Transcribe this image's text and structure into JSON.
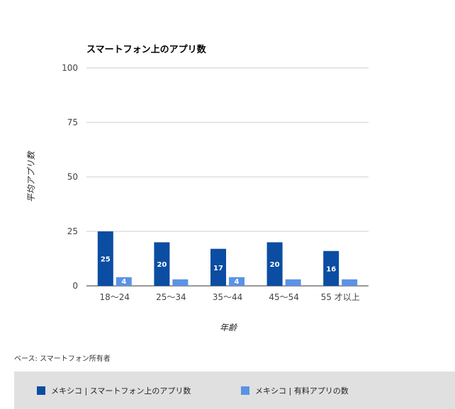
{
  "chart_data": {
    "type": "bar",
    "title": "スマートフォン上のアプリ数",
    "xlabel": "年齢",
    "ylabel": "平均アプリ数",
    "categories": [
      "18〜24",
      "25〜34",
      "35〜44",
      "45〜54",
      "55 才以上"
    ],
    "ylim": [
      0,
      100
    ],
    "yticks": [
      0,
      25,
      50,
      75,
      100
    ],
    "grid": true,
    "legend_position": "bottom",
    "series": [
      {
        "name": "メキシコ | スマートフォン上のアプリ数",
        "color": "#0b4da2",
        "values": [
          25,
          20,
          17,
          20,
          16
        ],
        "labels": [
          "25",
          "20",
          "17",
          "20",
          "16"
        ]
      },
      {
        "name": "メキシコ | 有料アプリの数",
        "color": "#5b92e5",
        "values": [
          4,
          3,
          4,
          3,
          3
        ],
        "labels": [
          "4",
          "",
          "4",
          "",
          ""
        ]
      }
    ]
  },
  "note": "ベース: スマートフォン所有者"
}
